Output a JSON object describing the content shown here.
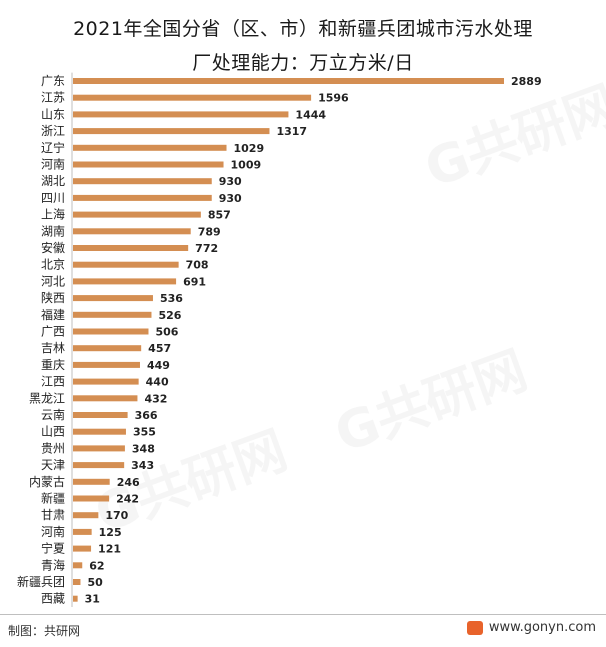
{
  "chart_data": {
    "type": "bar",
    "orientation": "horizontal",
    "title_line1": "2021年全国分省（区、市）和新疆兵团城市污水处理",
    "title_line2": "厂处理能力：万立方米/日",
    "categories": [
      "广东",
      "江苏",
      "山东",
      "浙江",
      "辽宁",
      "河南",
      "湖北",
      "四川",
      "上海",
      "湖南",
      "安徽",
      "北京",
      "河北",
      "陕西",
      "福建",
      "广西",
      "吉林",
      "重庆",
      "江西",
      "黑龙江",
      "云南",
      "山西",
      "贵州",
      "天津",
      "内蒙古",
      "新疆",
      "甘肃",
      "河南",
      "宁夏",
      "青海",
      "新疆兵团",
      "西藏"
    ],
    "values": [
      2889,
      1596,
      1444,
      1317,
      1029,
      1009,
      930,
      930,
      857,
      789,
      772,
      708,
      691,
      536,
      526,
      506,
      457,
      449,
      440,
      432,
      366,
      355,
      348,
      343,
      246,
      242,
      170,
      125,
      121,
      62,
      50,
      31
    ],
    "xlim": [
      0,
      2889
    ],
    "bar_color": "#d48e52"
  },
  "footer": {
    "source": "制图：共研网",
    "website": "www.gonyn.com"
  },
  "watermark_text": "G共研网"
}
